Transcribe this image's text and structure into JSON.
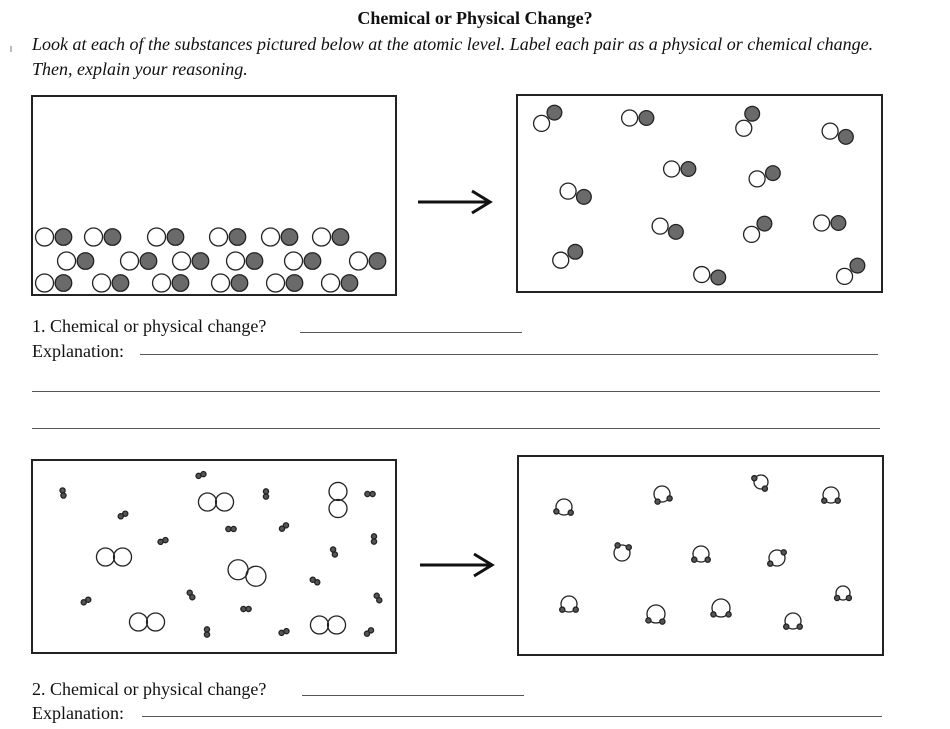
{
  "worksheet": {
    "title": "Chemical or Physical Change?",
    "instructions": "Look at each of the substances pictured below at the atomic level. Label each pair as a physical or chemical change. Then, explain your reasoning."
  },
  "questions": [
    {
      "prompt": "1. Chemical or physical change?",
      "answer": "",
      "explanation_label": "Explanation:"
    },
    {
      "prompt": "2. Chemical or physical change?",
      "answer": "",
      "explanation_label": "Explanation:"
    }
  ]
}
